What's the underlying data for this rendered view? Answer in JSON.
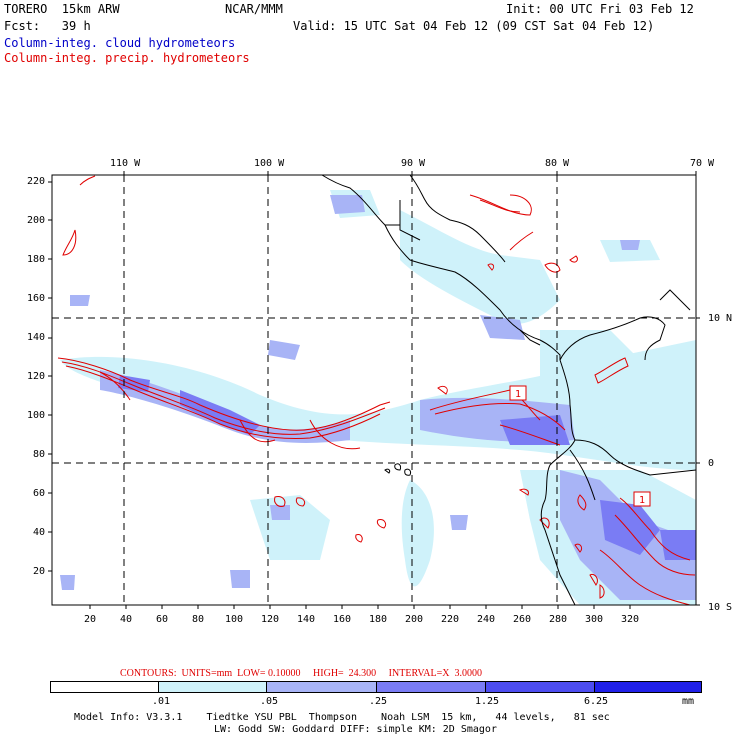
{
  "header": {
    "model": "TORERO  15km ARW",
    "org": "NCAR/MMM",
    "init": "Init: 00 UTC Fri 03 Feb 12",
    "fcst": "Fcst:   39 h",
    "valid": "Valid: 15 UTC Sat 04 Feb 12 (09 CST Sat 04 Feb 12)",
    "field1": "Column-integ. cloud hydrometeors",
    "field2": "Column-integ. precip. hydrometeors"
  },
  "map": {
    "lon_labels": [
      "110 W",
      "100 W",
      "90 W",
      "80 W",
      "70 W"
    ],
    "lat_labels": [
      "10 N",
      "0",
      "10 S"
    ],
    "y_ticks": [
      "220",
      "200",
      "180",
      "160",
      "140",
      "120",
      "100",
      "80",
      "60",
      "40",
      "20"
    ],
    "x_ticks": [
      "20",
      "40",
      "60",
      "80",
      "100",
      "120",
      "140",
      "160",
      "180",
      "200",
      "220",
      "240",
      "260",
      "280",
      "300",
      "320"
    ],
    "contour_labels": [
      "1",
      "1"
    ]
  },
  "contour_info": "CONTOURS:  UNITS=mm  LOW= 0.10000     HIGH=  24.300     INTERVAL=X  3.0000",
  "colorbar": {
    "labels": [
      ".01",
      ".05",
      ".25",
      "1.25",
      "6.25"
    ],
    "unit": "mm",
    "colors": [
      "#ffffff",
      "#cff2fa",
      "#a8b4f6",
      "#7a7cf4",
      "#4d4df0",
      "#2020e8"
    ]
  },
  "footer": {
    "line1": "Model Info: V3.3.1    Tiedtke YSU PBL  Thompson    Noah LSM  15 km,   44 levels,   81 sec",
    "line2": "LW: Godd SW: Goddard DIFF: simple KM: 2D Smagor"
  }
}
